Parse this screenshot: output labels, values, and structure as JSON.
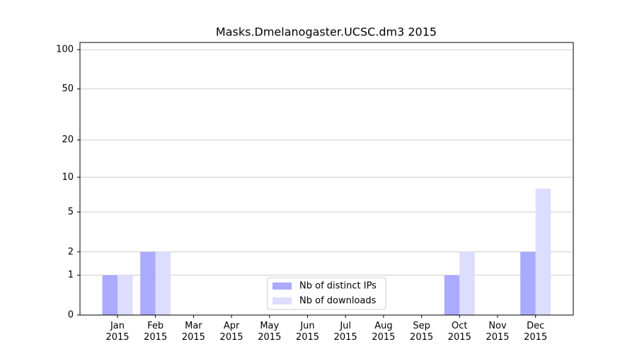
{
  "chart_data": {
    "type": "bar",
    "title": "Masks.Dmelanogaster.UCSC.dm3 2015",
    "categories": [
      "Jan\n2015",
      "Feb\n2015",
      "Mar\n2015",
      "Apr\n2015",
      "May\n2015",
      "Jun\n2015",
      "Jul\n2015",
      "Aug\n2015",
      "Sep\n2015",
      "Oct\n2015",
      "Nov\n2015",
      "Dec\n2015"
    ],
    "series": [
      {
        "name": "Nb of distinct IPs",
        "color": "#aaaaff",
        "values": [
          1,
          2,
          0,
          0,
          0,
          0,
          0,
          0,
          0,
          1,
          0,
          2
        ]
      },
      {
        "name": "Nb of downloads",
        "color": "#ddddff",
        "values": [
          1,
          2,
          0,
          0,
          0,
          0,
          0,
          0,
          0,
          2,
          0,
          8
        ]
      }
    ],
    "yscale": "log1p",
    "ylim": [
      0,
      113.5
    ],
    "yticks": [
      0,
      1,
      2,
      5,
      10,
      20,
      50,
      100
    ],
    "grid": true,
    "legend": "lower center"
  }
}
